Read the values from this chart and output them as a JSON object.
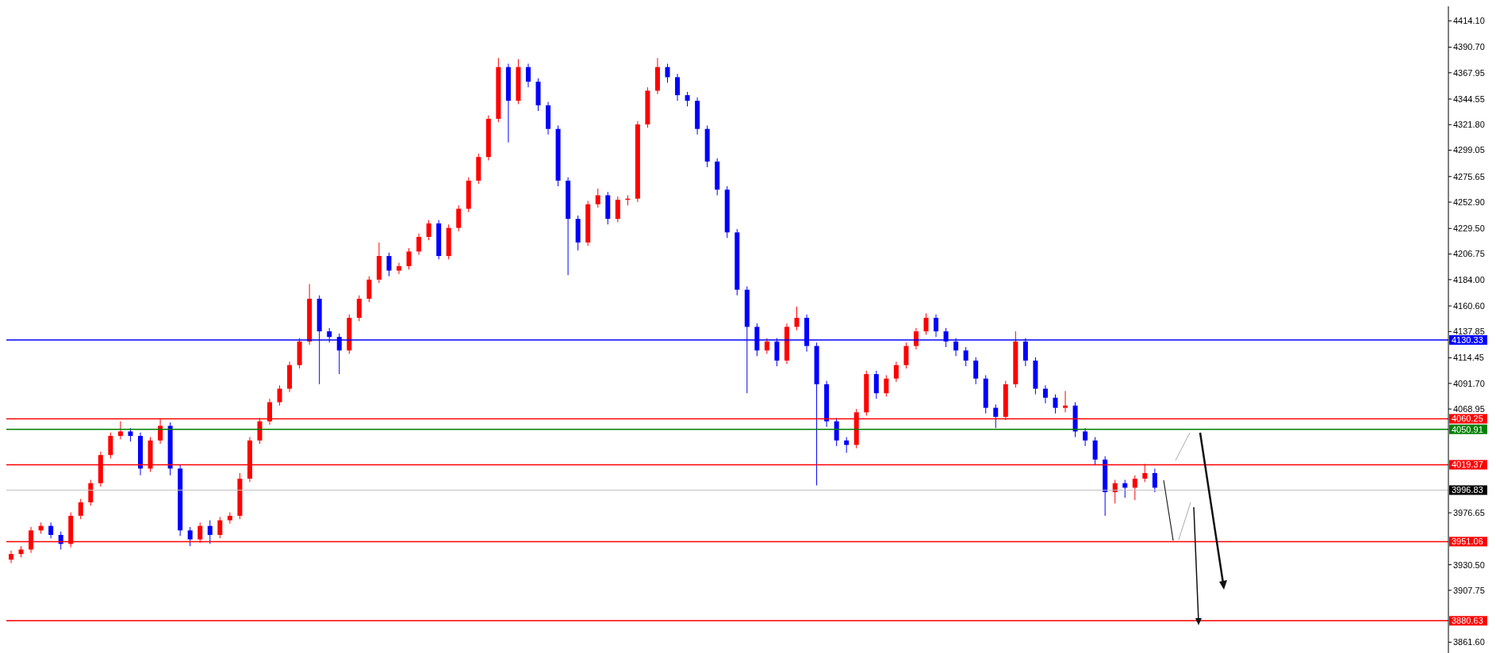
{
  "chart_data": {
    "type": "candlestick",
    "categories": [
      null,
      null,
      null,
      null,
      null,
      null,
      null,
      null,
      null,
      null,
      null,
      null,
      null,
      null,
      null,
      null,
      null,
      null,
      null,
      null,
      null,
      null,
      null,
      null,
      null,
      null,
      null,
      null,
      null,
      null,
      null,
      null,
      null,
      null,
      null,
      null,
      null,
      null,
      null,
      null,
      null,
      null,
      null,
      null,
      null,
      null,
      null,
      null,
      null,
      null,
      null,
      null,
      null,
      null,
      null,
      null,
      null,
      null,
      null,
      null,
      null,
      null,
      null,
      null,
      null,
      null,
      null,
      null,
      null,
      null,
      null,
      null,
      null,
      null,
      null,
      null,
      null,
      null,
      null,
      null,
      null,
      null,
      null,
      null,
      null,
      null,
      null,
      null,
      null,
      null,
      null,
      null,
      null,
      null,
      null,
      null,
      null,
      null,
      null,
      null,
      null,
      null,
      null,
      null,
      null,
      null,
      null,
      null,
      null,
      null,
      null,
      null,
      null,
      null,
      null,
      null,
      null,
      null,
      null,
      null,
      null,
      null,
      null,
      null,
      null,
      null,
      null,
      null,
      null,
      null,
      null,
      null,
      null,
      null,
      null,
      null,
      null,
      null,
      null,
      null,
      null,
      null,
      null,
      null,
      null
    ],
    "ohlc": [
      [
        3935,
        3943,
        3932,
        3940
      ],
      [
        3940,
        3947,
        3937,
        3944
      ],
      [
        3944,
        3964,
        3941,
        3961
      ],
      [
        3961,
        3968,
        3958,
        3965
      ],
      [
        3965,
        3968,
        3954,
        3957
      ],
      [
        3957,
        3960,
        3944,
        3949
      ],
      [
        3949,
        3977,
        3946,
        3974
      ],
      [
        3974,
        3989,
        3971,
        3986
      ],
      [
        3986,
        4006,
        3983,
        4003
      ],
      [
        4003,
        4031,
        4000,
        4028
      ],
      [
        4028,
        4048,
        4025,
        4045
      ],
      [
        4045,
        4058,
        4042,
        4049
      ],
      [
        4049,
        4052,
        4040,
        4045
      ],
      [
        4045,
        4048,
        4010,
        4016
      ],
      [
        4016,
        4044,
        4013,
        4041
      ],
      [
        4041,
        4060,
        4038,
        4054
      ],
      [
        4054,
        4057,
        4010,
        4016
      ],
      [
        4016,
        4019,
        3956,
        3961
      ],
      [
        3961,
        3964,
        3947,
        3953
      ],
      [
        3953,
        3968,
        3950,
        3965
      ],
      [
        3965,
        3970,
        3949,
        3957
      ],
      [
        3957,
        3973,
        3954,
        3970
      ],
      [
        3970,
        3977,
        3967,
        3974
      ],
      [
        3974,
        4012,
        3971,
        4007
      ],
      [
        4007,
        4044,
        4004,
        4041
      ],
      [
        4041,
        4061,
        4038,
        4058
      ],
      [
        4058,
        4078,
        4055,
        4075
      ],
      [
        4075,
        4090,
        4072,
        4087
      ],
      [
        4087,
        4111,
        4084,
        4108
      ],
      [
        4108,
        4132,
        4105,
        4129
      ],
      [
        4129,
        4180,
        4126,
        4167
      ],
      [
        4167,
        4170,
        4091,
        4138
      ],
      [
        4138,
        4141,
        4128,
        4133
      ],
      [
        4133,
        4136,
        4100,
        4121
      ],
      [
        4121,
        4153,
        4118,
        4150
      ],
      [
        4150,
        4170,
        4147,
        4167
      ],
      [
        4167,
        4187,
        4164,
        4184
      ],
      [
        4184,
        4217,
        4181,
        4205
      ],
      [
        4205,
        4208,
        4187,
        4192
      ],
      [
        4192,
        4199,
        4189,
        4196
      ],
      [
        4196,
        4212,
        4193,
        4209
      ],
      [
        4209,
        4225,
        4206,
        4222
      ],
      [
        4222,
        4237,
        4219,
        4234
      ],
      [
        4234,
        4237,
        4202,
        4205
      ],
      [
        4205,
        4233,
        4202,
        4230
      ],
      [
        4230,
        4250,
        4227,
        4247
      ],
      [
        4247,
        4275,
        4244,
        4272
      ],
      [
        4272,
        4296,
        4269,
        4293
      ],
      [
        4293,
        4330,
        4290,
        4327
      ],
      [
        4327,
        4381,
        4324,
        4373
      ],
      [
        4373,
        4376,
        4306,
        4343
      ],
      [
        4343,
        4380,
        4340,
        4373
      ],
      [
        4373,
        4376,
        4355,
        4360
      ],
      [
        4360,
        4363,
        4334,
        4339
      ],
      [
        4339,
        4342,
        4313,
        4318
      ],
      [
        4318,
        4321,
        4267,
        4272
      ],
      [
        4272,
        4275,
        4188,
        4238
      ],
      [
        4238,
        4241,
        4210,
        4217
      ],
      [
        4217,
        4254,
        4214,
        4251
      ],
      [
        4251,
        4265,
        4248,
        4259
      ],
      [
        4259,
        4262,
        4233,
        4238
      ],
      [
        4238,
        4258,
        4235,
        4255
      ],
      [
        4255,
        4259,
        4250,
        4256
      ],
      [
        4256,
        4325,
        4253,
        4322
      ],
      [
        4322,
        4355,
        4319,
        4352
      ],
      [
        4352,
        4381,
        4349,
        4373
      ],
      [
        4373,
        4376,
        4359,
        4364
      ],
      [
        4364,
        4367,
        4343,
        4348
      ],
      [
        4348,
        4351,
        4338,
        4343
      ],
      [
        4343,
        4346,
        4313,
        4318
      ],
      [
        4318,
        4321,
        4284,
        4289
      ],
      [
        4289,
        4292,
        4259,
        4264
      ],
      [
        4264,
        4267,
        4221,
        4226
      ],
      [
        4226,
        4229,
        4170,
        4175
      ],
      [
        4175,
        4178,
        4083,
        4142
      ],
      [
        4142,
        4145,
        4116,
        4121
      ],
      [
        4121,
        4132,
        4118,
        4129
      ],
      [
        4129,
        4132,
        4107,
        4112
      ],
      [
        4112,
        4145,
        4109,
        4142
      ],
      [
        4142,
        4160,
        4139,
        4150
      ],
      [
        4150,
        4153,
        4120,
        4125
      ],
      [
        4125,
        4128,
        4001,
        4091
      ],
      [
        4091,
        4094,
        4053,
        4058
      ],
      [
        4058,
        4061,
        4036,
        4041
      ],
      [
        4041,
        4044,
        4030,
        4037
      ],
      [
        4037,
        4069,
        4034,
        4066
      ],
      [
        4066,
        4103,
        4063,
        4100
      ],
      [
        4100,
        4103,
        4078,
        4083
      ],
      [
        4083,
        4099,
        4080,
        4096
      ],
      [
        4096,
        4111,
        4093,
        4108
      ],
      [
        4108,
        4128,
        4105,
        4125
      ],
      [
        4125,
        4141,
        4122,
        4138
      ],
      [
        4138,
        4154,
        4135,
        4150
      ],
      [
        4150,
        4153,
        4133,
        4138
      ],
      [
        4138,
        4141,
        4124,
        4129
      ],
      [
        4129,
        4132,
        4116,
        4121
      ],
      [
        4121,
        4124,
        4107,
        4112
      ],
      [
        4112,
        4115,
        4091,
        4096
      ],
      [
        4096,
        4099,
        4065,
        4070
      ],
      [
        4070,
        4073,
        4052,
        4062
      ],
      [
        4062,
        4094,
        4059,
        4091
      ],
      [
        4091,
        4138,
        4088,
        4129
      ],
      [
        4129,
        4132,
        4107,
        4112
      ],
      [
        4112,
        4115,
        4082,
        4087
      ],
      [
        4087,
        4090,
        4074,
        4079
      ],
      [
        4079,
        4082,
        4065,
        4070
      ],
      [
        4070,
        4085,
        4066,
        4072
      ],
      [
        4072,
        4075,
        4044,
        4049
      ],
      [
        4049,
        4052,
        4036,
        4041
      ],
      [
        4041,
        4044,
        4019,
        4024
      ],
      [
        4024,
        4027,
        3974,
        3995
      ],
      [
        3995,
        4006,
        3985,
        4003
      ],
      [
        4003,
        4006,
        3990,
        3999
      ],
      [
        3999,
        4010,
        3988,
        4007
      ],
      [
        4007,
        4020,
        4004,
        4012
      ],
      [
        4012,
        4016,
        3995,
        3999
      ],
      null,
      null,
      null,
      null,
      null,
      null,
      null,
      null,
      null,
      null,
      null,
      null,
      null,
      null,
      null,
      null,
      null,
      null,
      null,
      null,
      null,
      null,
      null,
      null,
      null,
      null,
      null,
      null,
      null
    ],
    "colors": [
      "#ff0000",
      "#ff0000",
      "#ff0000",
      "#ff0000",
      "#0000ff",
      "#0000ff",
      "#ff0000",
      "#ff0000",
      "#ff0000",
      "#ff0000",
      "#ff0000",
      "#ff0000",
      "#0000ff",
      "#0000ff",
      "#ff0000",
      "#ff0000",
      "#0000ff",
      "#0000ff",
      "#0000ff",
      "#ff0000",
      "#0000ff",
      "#ff0000",
      "#ff0000",
      "#ff0000",
      "#ff0000",
      "#ff0000",
      "#ff0000",
      "#ff0000",
      "#ff0000",
      "#ff0000",
      "#ff0000",
      "#0000ff",
      "#0000ff",
      "#0000ff",
      "#ff0000",
      "#ff0000",
      "#ff0000",
      "#ff0000",
      "#0000ff",
      "#ff0000",
      "#ff0000",
      "#ff0000",
      "#ff0000",
      "#0000ff",
      "#ff0000",
      "#ff0000",
      "#ff0000",
      "#ff0000",
      "#ff0000",
      "#ff0000",
      "#0000ff",
      "#ff0000",
      "#0000ff",
      "#0000ff",
      "#0000ff",
      "#0000ff",
      "#0000ff",
      "#0000ff",
      "#ff0000",
      "#ff0000",
      "#0000ff",
      "#ff0000",
      "#ff0000",
      "#ff0000",
      "#ff0000",
      "#ff0000",
      "#0000ff",
      "#0000ff",
      "#0000ff",
      "#0000ff",
      "#0000ff",
      "#0000ff",
      "#0000ff",
      "#0000ff",
      "#0000ff",
      "#0000ff",
      "#ff0000",
      "#0000ff",
      "#ff0000",
      "#ff0000",
      "#0000ff",
      "#0000ff",
      "#0000ff",
      "#0000ff",
      "#0000ff",
      "#ff0000",
      "#ff0000",
      "#0000ff",
      "#ff0000",
      "#ff0000",
      "#ff0000",
      "#ff0000",
      "#ff0000",
      "#0000ff",
      "#0000ff",
      "#0000ff",
      "#0000ff",
      "#0000ff",
      "#0000ff",
      "#0000ff",
      "#ff0000",
      "#ff0000",
      "#0000ff",
      "#0000ff",
      "#0000ff",
      "#0000ff",
      "#ff0000",
      "#0000ff",
      "#0000ff",
      "#0000ff",
      "#0000ff",
      "#ff0000",
      "#0000ff",
      "#ff0000",
      "#ff0000",
      "#0000ff",
      null,
      null,
      null,
      null,
      null,
      null,
      null,
      null,
      null,
      null,
      null,
      null,
      null,
      null,
      null,
      null,
      null,
      null,
      null,
      null,
      null,
      null,
      null,
      null,
      null,
      null,
      null,
      null,
      null
    ],
    "ylim": [
      3852,
      4427
    ],
    "yticks": [
      {
        "value": 4414.1,
        "label": "4414.10"
      },
      {
        "value": 4390.7,
        "label": "4390.70"
      },
      {
        "value": 4367.95,
        "label": "4367.95"
      },
      {
        "value": 4344.55,
        "label": "4344.55"
      },
      {
        "value": 4321.8,
        "label": "4321.80"
      },
      {
        "value": 4299.05,
        "label": "4299.05"
      },
      {
        "value": 4275.65,
        "label": "4275.65"
      },
      {
        "value": 4252.9,
        "label": "4252.90"
      },
      {
        "value": 4229.5,
        "label": "4229.50"
      },
      {
        "value": 4206.75,
        "label": "4206.75"
      },
      {
        "value": 4184,
        "label": "4184.00"
      },
      {
        "value": 4160.6,
        "label": "4160.60"
      },
      {
        "value": 4137.85,
        "label": "4137.85"
      },
      {
        "value": 4114.45,
        "label": "4114.45"
      },
      {
        "value": 4091.7,
        "label": "4091.70"
      },
      {
        "value": 4068.95,
        "label": "4068.95"
      },
      {
        "value": 3976.65,
        "label": "3976.65"
      },
      {
        "value": 3930.5,
        "label": "3930.50"
      },
      {
        "value": 3907.75,
        "label": "3907.75"
      },
      {
        "value": 3861.6,
        "label": "3861.60"
      }
    ],
    "ref_lines": [
      {
        "axis": "y",
        "value": 4130.33,
        "label": "4130.33",
        "color": "#0000ff"
      },
      {
        "axis": "y",
        "value": 4060.25,
        "label": "4060.25",
        "color": "#ff0000"
      },
      {
        "axis": "y",
        "value": 4050.91,
        "label": "4050.91",
        "color": "#008000"
      },
      {
        "axis": "y",
        "value": 4019.37,
        "label": "4019.37",
        "color": "#ff0000"
      },
      {
        "axis": "y",
        "value": 3996.83,
        "label": "3996.83",
        "color": "#c0c0c0"
      },
      {
        "axis": "y",
        "value": 3951.06,
        "label": "3951.06",
        "color": "#ff0000"
      },
      {
        "axis": "y",
        "value": 3880.63,
        "label": "3880.63",
        "color": "#ff0000"
      }
    ],
    "grid": false,
    "legend": false,
    "tick_labels": "y"
  }
}
